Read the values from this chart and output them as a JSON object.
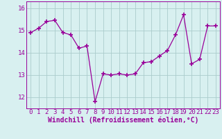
{
  "x": [
    0,
    1,
    2,
    3,
    4,
    5,
    6,
    7,
    8,
    9,
    10,
    11,
    12,
    13,
    14,
    15,
    16,
    17,
    18,
    19,
    20,
    21,
    22,
    23
  ],
  "y": [
    14.9,
    15.1,
    15.4,
    15.45,
    14.9,
    14.8,
    14.2,
    14.3,
    11.8,
    13.05,
    13.0,
    13.05,
    13.0,
    13.05,
    13.55,
    13.6,
    13.85,
    14.1,
    14.8,
    15.7,
    13.5,
    13.7,
    15.2,
    15.2
  ],
  "line_color": "#990099",
  "marker": "+",
  "marker_size": 4,
  "marker_lw": 1.2,
  "bg_color": "#d8f0f0",
  "grid_color": "#aacccc",
  "xlabel": "Windchill (Refroidissement éolien,°C)",
  "xlabel_fontsize": 7,
  "tick_fontsize": 6.5,
  "ylim": [
    11.5,
    16.3
  ],
  "xlim": [
    -0.5,
    23.5
  ],
  "yticks": [
    12,
    13,
    14,
    15,
    16
  ],
  "xticks": [
    0,
    1,
    2,
    3,
    4,
    5,
    6,
    7,
    8,
    9,
    10,
    11,
    12,
    13,
    14,
    15,
    16,
    17,
    18,
    19,
    20,
    21,
    22,
    23
  ],
  "linewidth": 0.9
}
